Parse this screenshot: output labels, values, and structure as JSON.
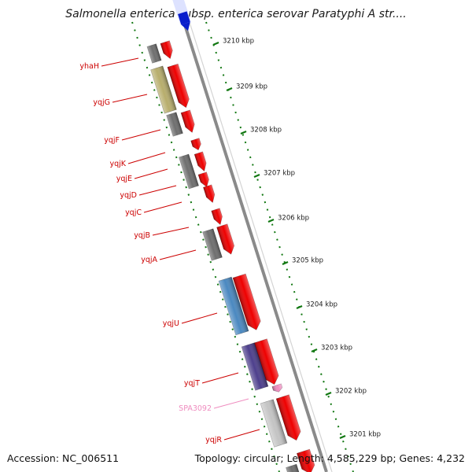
{
  "title": "Salmonella enterica subsp. enterica serovar Paratyphi A str....",
  "footer": {
    "accession": "Accession: NC_006511",
    "topology": "Topology: circular; Length: 4,585,229 bp; Genes: 4,232"
  },
  "colors": {
    "backbone": "#8a8a8a",
    "forward_cds": "#ee0000",
    "gene_dark": "#6e6e6e",
    "gene_olive": "#b7ad6c",
    "gene_blue": "#4a88c0",
    "gene_purple": "#4d3f8c",
    "gene_light": "#c4c4c4",
    "gene_pink": "#f08cc0",
    "label_red": "#cc0000",
    "label_pink": "#ef8cbf",
    "tick_green": "#117711",
    "top_blue": "#0a1ecc"
  },
  "scale": {
    "unit": "kbp",
    "ticks": [
      "3210 kbp",
      "3209 kbp",
      "3208 kbp",
      "3207 kbp",
      "3206 kbp",
      "3205 kbp",
      "3204 kbp",
      "3203 kbp",
      "3202 kbp",
      "3201 kbp"
    ]
  },
  "genes": [
    {
      "label": "yhaH",
      "color": "label_red"
    },
    {
      "label": "yqjG",
      "color": "label_red"
    },
    {
      "label": "yqjF",
      "color": "label_red"
    },
    {
      "label": "yqjK",
      "color": "label_red"
    },
    {
      "label": "yqjE",
      "color": "label_red"
    },
    {
      "label": "yqjD",
      "color": "label_red"
    },
    {
      "label": "yqjC",
      "color": "label_red"
    },
    {
      "label": "yqjB",
      "color": "label_red"
    },
    {
      "label": "yqjA",
      "color": "label_red"
    },
    {
      "label": "yqjU",
      "color": "label_red"
    },
    {
      "label": "yqjT",
      "color": "label_red"
    },
    {
      "label": "SPA3092",
      "color": "label_pink"
    },
    {
      "label": "yqjR",
      "color": "label_red"
    }
  ]
}
